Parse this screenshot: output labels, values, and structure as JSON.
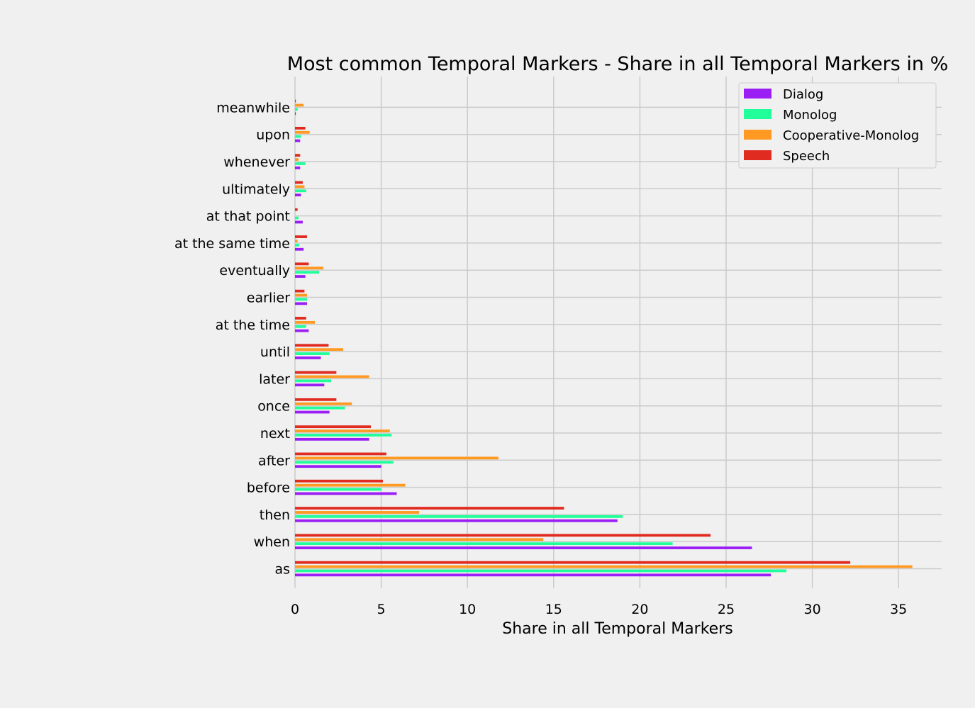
{
  "chart_data": {
    "type": "bar",
    "orientation": "horizontal",
    "title": "Most common Temporal Markers - Share in all Temporal Markers in %",
    "xlabel": "Share in all Temporal Markers",
    "ylabel": "",
    "xlim": [
      0,
      37.5
    ],
    "xticks": [
      0,
      5,
      10,
      15,
      20,
      25,
      30,
      35
    ],
    "grid": true,
    "legend_position": "top-right",
    "categories": [
      "as",
      "when",
      "then",
      "before",
      "after",
      "next",
      "once",
      "later",
      "until",
      "at the time",
      "earlier",
      "eventually",
      "at the same time",
      "at that point",
      "ultimately",
      "whenever",
      "upon",
      "meanwhile"
    ],
    "series": [
      {
        "name": "Dialog",
        "color": "#9b1ef5",
        "values": [
          27.6,
          26.5,
          18.7,
          5.9,
          5.0,
          4.3,
          2.0,
          1.7,
          1.5,
          0.8,
          0.7,
          0.6,
          0.5,
          0.45,
          0.35,
          0.3,
          0.3,
          0.05
        ]
      },
      {
        "name": "Monolog",
        "color": "#20ff9a",
        "values": [
          28.5,
          21.9,
          19.0,
          5.0,
          5.7,
          5.6,
          2.9,
          2.1,
          2.0,
          0.65,
          0.7,
          1.4,
          0.25,
          0.2,
          0.65,
          0.6,
          0.35,
          0.15
        ]
      },
      {
        "name": "Cooperative-Monolog",
        "color": "#ff9922",
        "values": [
          35.8,
          14.4,
          7.2,
          6.4,
          11.8,
          5.5,
          3.3,
          4.3,
          2.8,
          1.15,
          0.7,
          1.65,
          0.15,
          0.0,
          0.55,
          0.2,
          0.85,
          0.5
        ]
      },
      {
        "name": "Speech",
        "color": "#e02b20",
        "values": [
          32.2,
          24.1,
          15.6,
          5.1,
          5.3,
          4.4,
          2.4,
          2.4,
          1.95,
          0.65,
          0.55,
          0.8,
          0.7,
          0.15,
          0.45,
          0.3,
          0.6,
          0.05
        ]
      }
    ]
  }
}
